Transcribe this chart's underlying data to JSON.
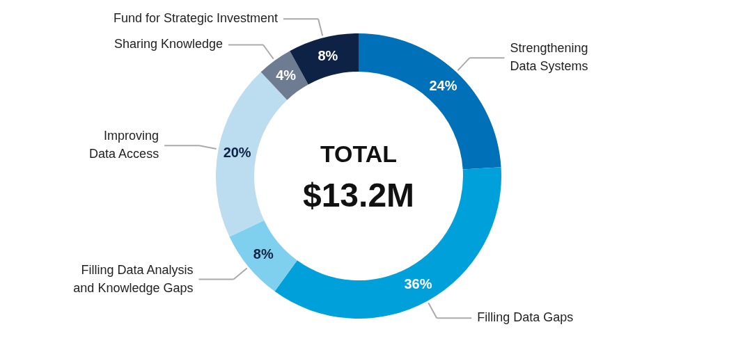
{
  "chart_data": {
    "type": "donut",
    "categories": [
      "Strengthening\nData Systems",
      "Filling Data Gaps",
      "Filling Data Analysis\nand Knowledge Gaps",
      "Improving\nData Access",
      "Sharing Knowledge",
      "Fund for Strategic Investment"
    ],
    "values": [
      24,
      36,
      8,
      20,
      4,
      8
    ],
    "value_labels": [
      "24%",
      "36%",
      "8%",
      "20%",
      "4%",
      "8%"
    ],
    "colors": [
      "#0070b8",
      "#00a0db",
      "#7fd0ee",
      "#bcdcef",
      "#6e7c91",
      "#0d2244"
    ],
    "annotations": [
      "TOTAL",
      "$13.2M"
    ]
  }
}
